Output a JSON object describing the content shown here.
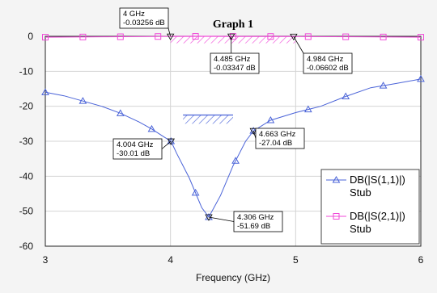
{
  "chart_data": {
    "type": "line",
    "title": "Graph 1",
    "xlabel": "Frequency (GHz)",
    "ylabel": "",
    "xlim": [
      3,
      6
    ],
    "ylim": [
      -60,
      0
    ],
    "xticks": [
      "3",
      "4",
      "5",
      "6"
    ],
    "yticks": [
      "0",
      "-10",
      "-20",
      "-30",
      "-40",
      "-50",
      "-60"
    ],
    "grid": true,
    "legend_position": "bottom-right",
    "series": [
      {
        "name": "DB(|S(1,1)|)",
        "sub": "Stub",
        "color": "#4a63d8",
        "marker": "triangle",
        "x": [
          3.0,
          3.15,
          3.3,
          3.45,
          3.6,
          3.75,
          3.85,
          3.95,
          4.004,
          4.05,
          4.15,
          4.25,
          4.306,
          4.4,
          4.5,
          4.6,
          4.663,
          4.8,
          5.0,
          5.2,
          5.4,
          5.6,
          5.8,
          6.0
        ],
        "values": [
          -16.0,
          -17.0,
          -18.5,
          -20.0,
          -22.0,
          -24.5,
          -26.5,
          -28.8,
          -30.01,
          -33.5,
          -40.5,
          -49.0,
          -51.69,
          -45.5,
          -37.0,
          -30.0,
          -27.04,
          -24.0,
          -21.8,
          -20.0,
          -17.2,
          -14.7,
          -13.5,
          -12.2
        ],
        "marker_x": [
          3.0,
          3.3,
          3.6,
          3.85,
          4.004,
          4.2,
          4.306,
          4.52,
          4.663,
          4.8,
          5.1,
          5.4,
          5.7,
          6.0
        ]
      },
      {
        "name": "DB(|S(2,1)|)",
        "sub": "Stub",
        "color": "#f04ad8",
        "marker": "square",
        "x": [
          3.0,
          3.5,
          4.0,
          4.306,
          4.485,
          4.984,
          5.5,
          6.0
        ],
        "values": [
          -0.25,
          -0.15,
          -0.0326,
          -0.01,
          -0.0335,
          -0.066,
          -0.15,
          -0.25
        ],
        "marker_x": [
          3.0,
          3.3,
          3.6,
          3.9,
          4.2,
          4.5,
          4.8,
          5.1,
          5.4,
          5.7,
          6.0
        ]
      }
    ],
    "annotations": [
      {
        "x": 4.0,
        "y": -0.03256,
        "label": "4 GHz",
        "value": "-0.03256 dB"
      },
      {
        "x": 4.485,
        "y": -0.03347,
        "label": "4.485 GHz",
        "value": "-0.03347 dB"
      },
      {
        "x": 4.984,
        "y": -0.06602,
        "label": "4.984 GHz",
        "value": "-0.06602 dB"
      },
      {
        "x": 4.004,
        "y": -30.01,
        "label": "4.004 GHz",
        "value": "-30.01 dB"
      },
      {
        "x": 4.663,
        "y": -27.04,
        "label": "4.663 GHz",
        "value": "-27.04 dB"
      },
      {
        "x": 4.306,
        "y": -51.69,
        "label": "4.306 GHz",
        "value": "-51.69 dB"
      }
    ],
    "spec_regions": [
      {
        "x": [
          4.0,
          5.0
        ],
        "y": [
          -2.0,
          0.0
        ]
      },
      {
        "x": [
          4.1,
          4.5
        ],
        "y": [
          -25.0,
          -22.5
        ]
      }
    ]
  }
}
